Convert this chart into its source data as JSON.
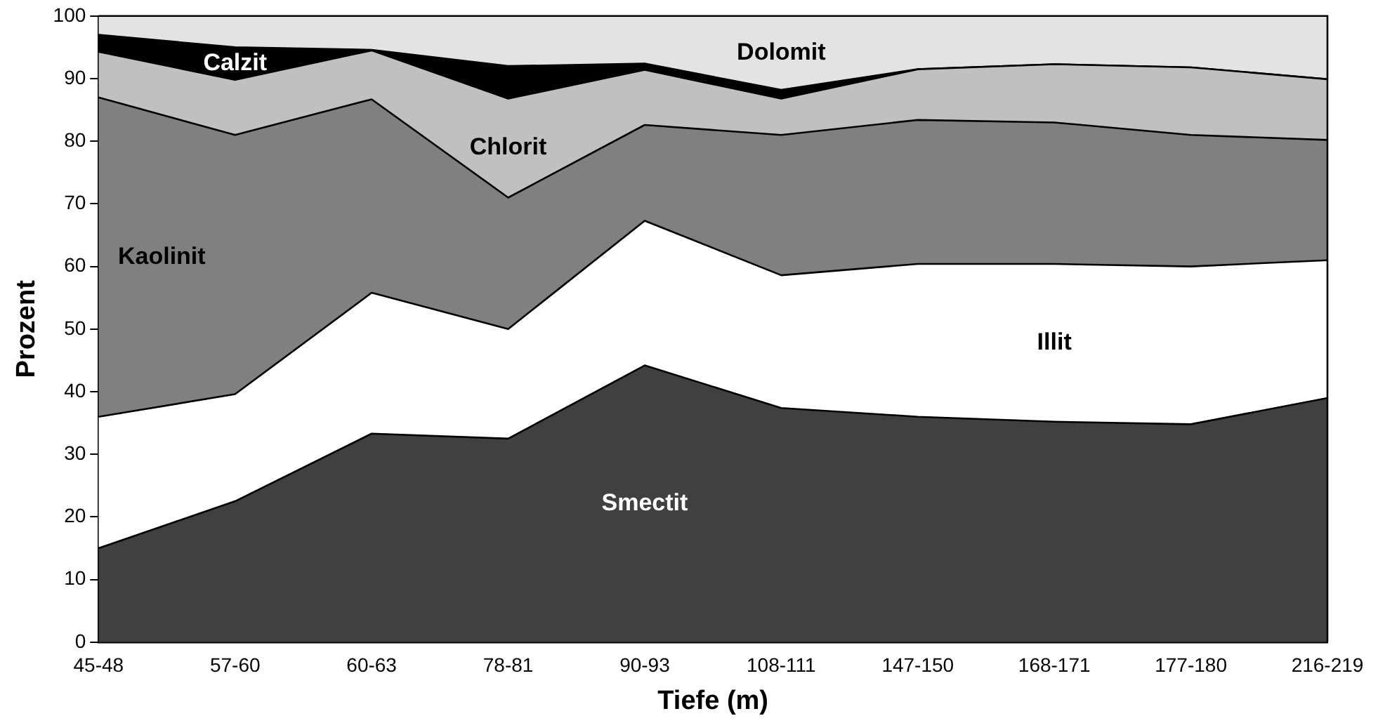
{
  "chart_data": {
    "type": "area",
    "stacked": true,
    "xlabel": "Tiefe (m)",
    "ylabel": "Prozent",
    "categories": [
      "45-48",
      "57-60",
      "60-63",
      "78-81",
      "90-93",
      "108-111",
      "147-150",
      "168-171",
      "177-180",
      "216-219"
    ],
    "ylim": [
      0,
      100
    ],
    "yticks": [
      0,
      10,
      20,
      30,
      40,
      50,
      60,
      70,
      80,
      90,
      100
    ],
    "grid": false,
    "legend": false,
    "series": [
      {
        "name": "Smectit",
        "color": "#404040",
        "values": [
          15,
          22.5,
          33.3,
          32.5,
          44.2,
          37.4,
          36,
          35.2,
          34.8,
          39
        ]
      },
      {
        "name": "Illit",
        "color": "#ffffff",
        "values": [
          21,
          17.1,
          22.5,
          17.5,
          23.1,
          21.2,
          24.4,
          25.2,
          25.2,
          22
        ]
      },
      {
        "name": "Kaolinit",
        "color": "#808080",
        "values": [
          51,
          41.4,
          30.9,
          21,
          15.3,
          22.4,
          23,
          22.6,
          21,
          19.2
        ]
      },
      {
        "name": "Chlorit",
        "color": "#c0c0c0",
        "values": [
          7.3,
          8.8,
          7.8,
          15.8,
          8.8,
          5.8,
          8.1,
          9.3,
          10.8,
          9.7
        ]
      },
      {
        "name": "Calzit",
        "color": "#000000",
        "values": [
          2.7,
          5.2,
          0.1,
          5.2,
          1,
          1.4,
          0,
          0,
          0,
          0
        ]
      },
      {
        "name": "Dolomit",
        "color": "#e3e3e3",
        "values": [
          3,
          5,
          5.4,
          8,
          7.6,
          11.8,
          8.5,
          7.7,
          8.2,
          10.1
        ]
      }
    ]
  }
}
